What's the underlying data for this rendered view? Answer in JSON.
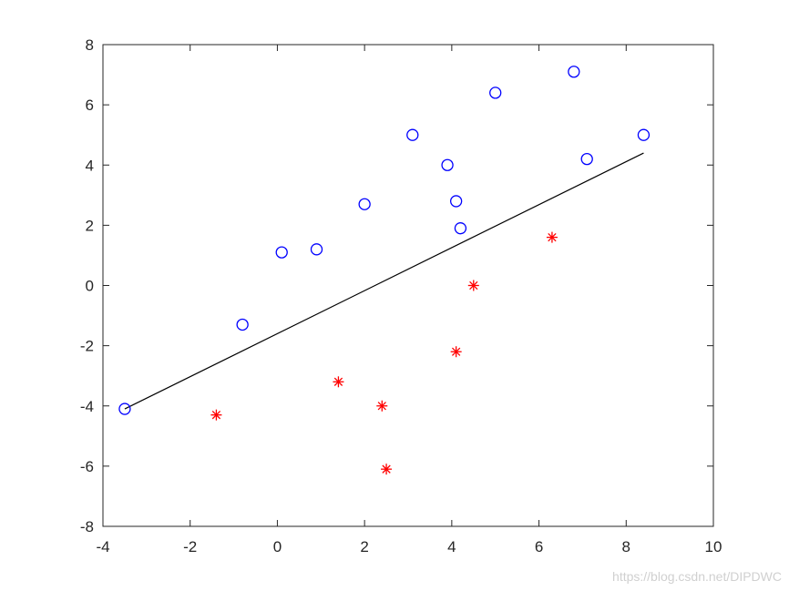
{
  "chart_data": {
    "type": "scatter",
    "title": "",
    "xlabel": "",
    "ylabel": "",
    "xlim": [
      -4,
      10
    ],
    "ylim": [
      -8,
      8
    ],
    "xticks": [
      -4,
      -2,
      0,
      2,
      4,
      6,
      8,
      10
    ],
    "yticks": [
      -8,
      -6,
      -4,
      -2,
      0,
      2,
      4,
      6,
      8
    ],
    "grid": false,
    "series": [
      {
        "marker": "circle",
        "color": "#0000ff",
        "points": [
          [
            -3.5,
            -4.1
          ],
          [
            -0.8,
            -1.3
          ],
          [
            0.1,
            1.1
          ],
          [
            0.9,
            1.2
          ],
          [
            2.0,
            2.7
          ],
          [
            3.1,
            5.0
          ],
          [
            3.9,
            4.0
          ],
          [
            4.1,
            2.8
          ],
          [
            4.2,
            1.9
          ],
          [
            5.0,
            6.4
          ],
          [
            6.8,
            7.1
          ],
          [
            7.1,
            4.2
          ],
          [
            8.4,
            5.0
          ]
        ]
      },
      {
        "marker": "asterisk",
        "color": "#ff0000",
        "points": [
          [
            -1.4,
            -4.3
          ],
          [
            1.4,
            -3.2
          ],
          [
            2.4,
            -4.0
          ],
          [
            2.5,
            -6.1
          ],
          [
            4.1,
            -2.2
          ],
          [
            4.5,
            0.0
          ],
          [
            6.3,
            1.6
          ]
        ]
      },
      {
        "type": "line",
        "color": "#000000",
        "points": [
          [
            -3.5,
            -4.1
          ],
          [
            8.4,
            4.4
          ]
        ]
      }
    ]
  },
  "watermark": "https://blog.csdn.net/DIPDWC"
}
